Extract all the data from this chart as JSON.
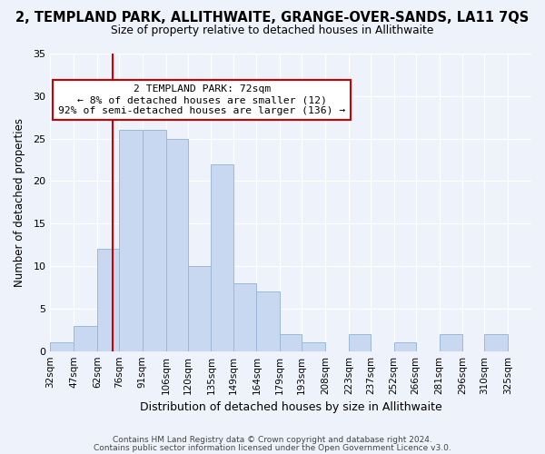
{
  "title": "2, TEMPLAND PARK, ALLITHWAITE, GRANGE-OVER-SANDS, LA11 7QS",
  "subtitle": "Size of property relative to detached houses in Allithwaite",
  "xlabel": "Distribution of detached houses by size in Allithwaite",
  "ylabel": "Number of detached properties",
  "bin_labels": [
    "32sqm",
    "47sqm",
    "62sqm",
    "76sqm",
    "91sqm",
    "106sqm",
    "120sqm",
    "135sqm",
    "149sqm",
    "164sqm",
    "179sqm",
    "193sqm",
    "208sqm",
    "223sqm",
    "237sqm",
    "252sqm",
    "266sqm",
    "281sqm",
    "296sqm",
    "310sqm",
    "325sqm"
  ],
  "bin_edges": [
    32,
    47,
    62,
    76,
    91,
    106,
    120,
    135,
    149,
    164,
    179,
    193,
    208,
    223,
    237,
    252,
    266,
    281,
    296,
    310,
    325,
    340
  ],
  "counts": [
    1,
    3,
    12,
    26,
    26,
    25,
    10,
    22,
    8,
    7,
    2,
    1,
    0,
    2,
    0,
    1,
    0,
    2,
    0,
    2,
    0
  ],
  "bar_color": "#c8d8f0",
  "bar_edge_color": "#9ab8d8",
  "vline_x": 72,
  "vline_color": "#cc0000",
  "annotation_title": "2 TEMPLAND PARK: 72sqm",
  "annotation_line1": "← 8% of detached houses are smaller (12)",
  "annotation_line2": "92% of semi-detached houses are larger (136) →",
  "annotation_box_color": "#ffffff",
  "annotation_box_edge": "#cc0000",
  "ylim": [
    0,
    35
  ],
  "yticks": [
    0,
    5,
    10,
    15,
    20,
    25,
    30,
    35
  ],
  "footer1": "Contains HM Land Registry data © Crown copyright and database right 2024.",
  "footer2": "Contains public sector information licensed under the Open Government Licence v3.0.",
  "background_color": "#eef2fa"
}
